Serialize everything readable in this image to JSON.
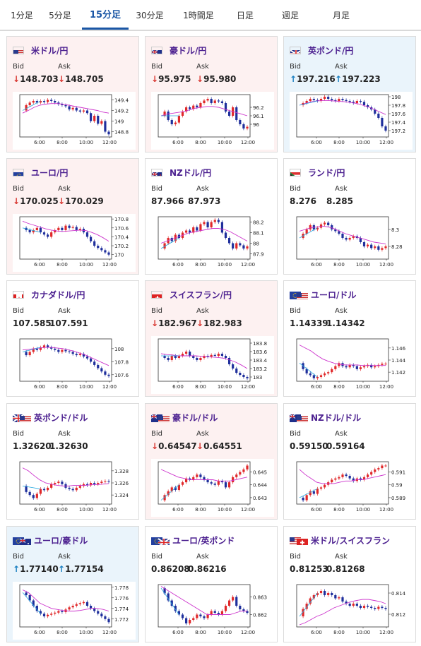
{
  "tabs": [
    {
      "label": "1分足",
      "active": false
    },
    {
      "label": "5分足",
      "active": false
    },
    {
      "label": "15分足",
      "active": true
    },
    {
      "label": "30分足",
      "active": false
    },
    {
      "label": "1時間足",
      "active": false
    },
    {
      "label": "日足",
      "active": false
    },
    {
      "label": "週足",
      "active": false
    },
    {
      "label": "月足",
      "active": false
    }
  ],
  "labels": {
    "bid": "Bid",
    "ask": "Ask"
  },
  "time_ticks": [
    "6:00",
    "8:00",
    "10:00",
    "12:00"
  ],
  "colors": {
    "down": "#d8352f",
    "up": "#1a7fc1",
    "candle_up": "#e0282a",
    "candle_down": "#1f2f9c",
    "ma_long": "#cc33cc",
    "ma_short": "#29a9e0"
  },
  "pairs": [
    {
      "name": "米ドル/円",
      "flag": "us",
      "trend": "down",
      "bid": "148.703",
      "ask": "148.705",
      "y_ticks": [
        "149.4",
        "149.2",
        "149",
        "148.8"
      ],
      "y_range": [
        148.7,
        149.5
      ],
      "series": [
        149.2,
        149.3,
        149.35,
        149.38,
        149.35,
        149.38,
        149.36,
        149.4,
        149.38,
        149.35,
        149.32,
        149.3,
        149.28,
        149.22,
        149.25,
        149.2,
        149.18,
        149.2,
        149.15,
        149.0,
        149.1,
        148.95,
        149.0,
        148.8,
        148.75
      ],
      "ma": [
        149.15,
        149.2,
        149.26,
        149.3,
        149.32,
        149.33,
        149.33,
        149.32,
        149.3,
        149.28,
        149.26,
        149.24,
        149.22,
        149.2,
        149.17,
        149.15
      ]
    },
    {
      "name": "豪ドル/円",
      "flag": "au",
      "trend": "down",
      "bid": "95.975",
      "ask": "95.980",
      "y_ticks": [
        "96.2",
        "96.1",
        "96"
      ],
      "y_range": [
        95.85,
        96.35
      ],
      "series": [
        96.1,
        96.15,
        96.05,
        96.0,
        96.02,
        96.1,
        96.15,
        96.2,
        96.18,
        96.22,
        96.2,
        96.25,
        96.28,
        96.3,
        96.25,
        96.28,
        96.27,
        96.25,
        96.15,
        96.1,
        96.2,
        96.05,
        96.0,
        95.95,
        95.97
      ],
      "ma": [
        96.1,
        96.12,
        96.13,
        96.14,
        96.15,
        96.17,
        96.19,
        96.2,
        96.21,
        96.21,
        96.2,
        96.18,
        96.16,
        96.14,
        96.12,
        96.1
      ]
    },
    {
      "name": "英ポンド/円",
      "flag": "gb",
      "trend": "up",
      "bid": "197.216",
      "ask": "197.223",
      "y_ticks": [
        "198",
        "197.8",
        "197.6",
        "197.4",
        "197.2"
      ],
      "y_range": [
        197.05,
        198.05
      ],
      "series": [
        197.8,
        197.85,
        197.9,
        197.95,
        197.92,
        197.9,
        197.95,
        198.0,
        197.95,
        197.92,
        197.9,
        197.95,
        197.92,
        197.9,
        197.88,
        197.85,
        197.9,
        197.88,
        197.8,
        197.75,
        197.7,
        197.6,
        197.5,
        197.3,
        197.2
      ],
      "ma": [
        197.8,
        197.84,
        197.88,
        197.9,
        197.91,
        197.91,
        197.9,
        197.89,
        197.88,
        197.86,
        197.84,
        197.8,
        197.76,
        197.7,
        197.64,
        197.58
      ]
    },
    {
      "name": "ユーロ/円",
      "flag": "eu",
      "trend": "down",
      "bid": "170.025",
      "ask": "170.029",
      "y_ticks": [
        "170.8",
        "170.6",
        "170.4",
        "170.2",
        "170"
      ],
      "y_range": [
        169.9,
        170.85
      ],
      "series": [
        170.6,
        170.55,
        170.5,
        170.55,
        170.6,
        170.5,
        170.45,
        170.4,
        170.5,
        170.55,
        170.6,
        170.55,
        170.65,
        170.6,
        170.62,
        170.55,
        170.58,
        170.5,
        170.4,
        170.3,
        170.2,
        170.15,
        170.1,
        170.05,
        170.0
      ],
      "ma": [
        170.75,
        170.7,
        170.66,
        170.62,
        170.58,
        170.55,
        170.53,
        170.52,
        170.53,
        170.54,
        170.55,
        170.54,
        170.5,
        170.45,
        170.38,
        170.3
      ]
    },
    {
      "name": "NZドル/円",
      "flag": "nz",
      "trend": "none",
      "bid": "87.966",
      "ask": "87.973",
      "y_ticks": [
        "88.2",
        "88.1",
        "88",
        "87.9"
      ],
      "y_range": [
        87.85,
        88.25
      ],
      "series": [
        87.95,
        88.0,
        88.05,
        88.02,
        88.08,
        88.05,
        88.1,
        88.12,
        88.1,
        88.15,
        88.12,
        88.18,
        88.2,
        88.15,
        88.2,
        88.22,
        88.2,
        88.1,
        88.05,
        88.0,
        87.95,
        88.0,
        87.98,
        87.95,
        87.97
      ],
      "ma": [
        88.0,
        88.02,
        88.04,
        88.06,
        88.08,
        88.1,
        88.11,
        88.12,
        88.13,
        88.14,
        88.14,
        88.13,
        88.11,
        88.08,
        88.05,
        88.02
      ]
    },
    {
      "name": "ランド/円",
      "flag": "za",
      "trend": "none",
      "bid": "8.276",
      "ask": "8.285",
      "y_ticks": [
        "8.3",
        "8.28"
      ],
      "y_range": [
        8.265,
        8.315
      ],
      "series": [
        8.29,
        8.295,
        8.3,
        8.305,
        8.3,
        8.302,
        8.306,
        8.308,
        8.305,
        8.3,
        8.298,
        8.295,
        8.29,
        8.288,
        8.29,
        8.292,
        8.29,
        8.285,
        8.28,
        8.282,
        8.278,
        8.28,
        8.276,
        8.278,
        8.28
      ],
      "ma": [
        8.298,
        8.3,
        8.302,
        8.303,
        8.304,
        8.303,
        8.301,
        8.298,
        8.295,
        8.293,
        8.291,
        8.289,
        8.287,
        8.285,
        8.284,
        8.283
      ]
    },
    {
      "name": "カナダドル/円",
      "flag": "ca",
      "trend": "none",
      "bid": "107.585",
      "ask": "107.591",
      "y_ticks": [
        "108",
        "107.8",
        "107.6"
      ],
      "y_range": [
        107.5,
        108.15
      ],
      "series": [
        107.95,
        107.9,
        107.95,
        108.0,
        107.98,
        108.02,
        108.05,
        108.02,
        108.0,
        107.98,
        107.95,
        107.98,
        107.96,
        107.95,
        107.92,
        107.9,
        107.92,
        107.88,
        107.85,
        107.8,
        107.75,
        107.7,
        107.65,
        107.6,
        107.58
      ],
      "ma": [
        107.98,
        107.99,
        108.0,
        108.01,
        108.02,
        108.02,
        108.01,
        108.0,
        107.98,
        107.96,
        107.93,
        107.9,
        107.86,
        107.82,
        107.78,
        107.74
      ]
    },
    {
      "name": "スイスフラン/円",
      "flag": "ch",
      "trend": "down",
      "bid": "182.967",
      "ask": "182.983",
      "y_ticks": [
        "183.8",
        "183.6",
        "183.4",
        "183.2",
        "183"
      ],
      "y_range": [
        182.9,
        183.9
      ],
      "series": [
        183.5,
        183.45,
        183.4,
        183.5,
        183.45,
        183.5,
        183.55,
        183.6,
        183.5,
        183.45,
        183.4,
        183.45,
        183.5,
        183.48,
        183.52,
        183.5,
        183.55,
        183.5,
        183.45,
        183.3,
        183.2,
        183.1,
        183.05,
        183.0,
        182.97
      ],
      "ma": [
        183.55,
        183.53,
        183.52,
        183.5,
        183.5,
        183.5,
        183.5,
        183.49,
        183.48,
        183.47,
        183.46,
        183.44,
        183.4,
        183.35,
        183.28,
        183.2
      ]
    },
    {
      "name": "ユーロ/ドル",
      "flag": "eu-us",
      "trend": "none",
      "bid": "1.14339",
      "ask": "1.14342",
      "y_ticks": [
        "1.146",
        "1.144",
        "1.142"
      ],
      "y_range": [
        1.1405,
        1.1475
      ],
      "series": [
        1.1435,
        1.1425,
        1.1418,
        1.1415,
        1.141,
        1.1412,
        1.1415,
        1.1418,
        1.142,
        1.1425,
        1.143,
        1.1435,
        1.143,
        1.1428,
        1.1432,
        1.143,
        1.1425,
        1.1428,
        1.143,
        1.1432,
        1.1428,
        1.143,
        1.1432,
        1.1434,
        1.1434
      ],
      "ma": [
        1.1465,
        1.146,
        1.1455,
        1.1448,
        1.1442,
        1.1438,
        1.1435,
        1.1433,
        1.1432,
        1.1432,
        1.1432,
        1.1431,
        1.1431,
        1.1431,
        1.1431,
        1.1431
      ]
    },
    {
      "name": "英ポンド/ドル",
      "flag": "gb-us",
      "trend": "none",
      "bid": "1.32620",
      "ask": "1.32630",
      "y_ticks": [
        "1.328",
        "1.326",
        "1.324"
      ],
      "y_range": [
        1.3225,
        1.3295
      ],
      "series": [
        1.3255,
        1.3245,
        1.324,
        1.3235,
        1.3242,
        1.325,
        1.3248,
        1.3252,
        1.3258,
        1.326,
        1.3262,
        1.3258,
        1.3252,
        1.325,
        1.3248,
        1.3252,
        1.3255,
        1.3258,
        1.3256,
        1.326,
        1.3258,
        1.326,
        1.3262,
        1.3263,
        1.3262
      ],
      "ma": [
        1.3285,
        1.328,
        1.3272,
        1.3265,
        1.326,
        1.3258,
        1.3256,
        1.3255,
        1.3255,
        1.3256,
        1.3256,
        1.3256,
        1.3257,
        1.3257,
        1.3258,
        1.3259
      ]
    },
    {
      "name": "豪ドル/ドル",
      "flag": "au-us",
      "trend": "down",
      "bid": "0.64547",
      "ask": "0.64551",
      "y_ticks": [
        "0.645",
        "0.644",
        "0.643"
      ],
      "y_range": [
        0.6425,
        0.6458
      ],
      "series": [
        0.6428,
        0.6432,
        0.6435,
        0.6438,
        0.6436,
        0.644,
        0.6442,
        0.6445,
        0.6444,
        0.6446,
        0.6448,
        0.6446,
        0.6444,
        0.6442,
        0.6441,
        0.644,
        0.6443,
        0.6442,
        0.6438,
        0.6442,
        0.6446,
        0.6448,
        0.645,
        0.6452,
        0.6455
      ],
      "ma": [
        0.6452,
        0.645,
        0.6448,
        0.6446,
        0.6445,
        0.6444,
        0.6444,
        0.6444,
        0.6444,
        0.6444,
        0.6443,
        0.6443,
        0.6443,
        0.6444,
        0.6445,
        0.6446
      ]
    },
    {
      "name": "NZドル/ドル",
      "flag": "nz-us",
      "trend": "none",
      "bid": "0.59150",
      "ask": "0.59164",
      "y_ticks": [
        "0.591",
        "0.59",
        "0.589"
      ],
      "y_range": [
        0.5885,
        0.5918
      ],
      "series": [
        0.589,
        0.5888,
        0.5892,
        0.5895,
        0.5893,
        0.5897,
        0.5898,
        0.59,
        0.5902,
        0.5904,
        0.5905,
        0.5906,
        0.5908,
        0.5907,
        0.5905,
        0.5903,
        0.5905,
        0.5904,
        0.5906,
        0.5908,
        0.591,
        0.5912,
        0.5913,
        0.5915,
        0.5915
      ],
      "ma": [
        0.5912,
        0.5908,
        0.5905,
        0.5902,
        0.5901,
        0.5901,
        0.5901,
        0.5902,
        0.5903,
        0.5903,
        0.5904,
        0.5904,
        0.5905,
        0.5906,
        0.5907,
        0.5908
      ]
    },
    {
      "name": "ユーロ/豪ドル",
      "flag": "eu-au",
      "trend": "up",
      "bid": "1.77140",
      "ask": "1.77154",
      "y_ticks": [
        "1.778",
        "1.776",
        "1.774",
        "1.772"
      ],
      "y_range": [
        1.7705,
        1.7785
      ],
      "series": [
        1.777,
        1.7765,
        1.7755,
        1.7745,
        1.7735,
        1.773,
        1.7725,
        1.7728,
        1.773,
        1.7732,
        1.7735,
        1.7733,
        1.7738,
        1.7742,
        1.7745,
        1.7748,
        1.775,
        1.7752,
        1.7745,
        1.774,
        1.7735,
        1.773,
        1.7725,
        1.772,
        1.7714
      ],
      "ma": [
        1.7775,
        1.777,
        1.776,
        1.775,
        1.7745,
        1.774,
        1.7738,
        1.7736,
        1.7735,
        1.7735,
        1.7736,
        1.7738,
        1.774,
        1.774,
        1.7738,
        1.7735
      ]
    },
    {
      "name": "ユーロ/英ポンド",
      "flag": "eu-gb",
      "trend": "none",
      "bid": "0.86208",
      "ask": "0.86216",
      "y_ticks": [
        "0.863",
        "0.862"
      ],
      "y_range": [
        0.8613,
        0.8637
      ],
      "series": [
        0.8635,
        0.8632,
        0.8628,
        0.8625,
        0.8622,
        0.862,
        0.8618,
        0.8615,
        0.8617,
        0.8618,
        0.862,
        0.8619,
        0.8618,
        0.862,
        0.8622,
        0.8621,
        0.862,
        0.8622,
        0.8625,
        0.8628,
        0.863,
        0.8625,
        0.8623,
        0.8622,
        0.8621
      ],
      "ma": [
        0.8636,
        0.8634,
        0.8632,
        0.863,
        0.8628,
        0.8626,
        0.8624,
        0.8622,
        0.862,
        0.862,
        0.862,
        0.862,
        0.862,
        0.8621,
        0.8622,
        0.8622
      ]
    },
    {
      "name": "米ドル/スイスフラン",
      "flag": "us-ch",
      "trend": "none",
      "bid": "0.81253",
      "ask": "0.81268",
      "y_ticks": [
        "0.814",
        "0.812"
      ],
      "y_range": [
        0.8108,
        0.8148
      ],
      "series": [
        0.8118,
        0.8125,
        0.813,
        0.8135,
        0.8138,
        0.814,
        0.8142,
        0.8138,
        0.814,
        0.8138,
        0.8135,
        0.8136,
        0.8132,
        0.813,
        0.8128,
        0.813,
        0.8128,
        0.8126,
        0.8128,
        0.8127,
        0.8126,
        0.8125,
        0.8127,
        0.8126,
        0.8125
      ],
      "ma": [
        0.811,
        0.8112,
        0.8115,
        0.8118,
        0.812,
        0.8123,
        0.8126,
        0.8128,
        0.813,
        0.8132,
        0.8133,
        0.8134,
        0.8134,
        0.8133,
        0.8132,
        0.813
      ]
    }
  ]
}
